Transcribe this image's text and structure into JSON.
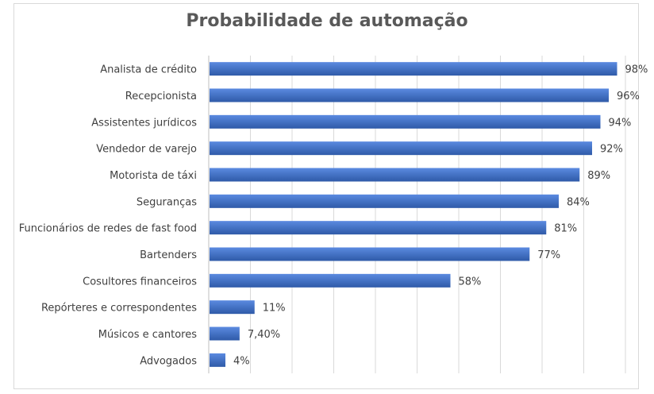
{
  "chart_data": {
    "type": "bar",
    "orientation": "horizontal",
    "title": "Probabilidade de automação",
    "categories": [
      "Analista de crédito",
      "Recepcionista",
      "Assistentes jurídicos",
      "Vendedor de varejo",
      "Motorista de táxi",
      "Seguranças",
      "Funcionários de redes de fast food",
      "Bartenders",
      "Cosultores financeiros",
      "Repórteres e correspondentes",
      "Músicos e cantores",
      "Advogados"
    ],
    "values": [
      98,
      96,
      94,
      92,
      89,
      84,
      81,
      77,
      58,
      11,
      7.4,
      4
    ],
    "value_labels": [
      "98%",
      "96%",
      "94%",
      "92%",
      "89%",
      "84%",
      "81%",
      "77%",
      "58%",
      "11%",
      "7,40%",
      "4%"
    ],
    "xlim": [
      0,
      100
    ],
    "grid": true,
    "bar_color": "#4472c4",
    "legend": "none"
  }
}
